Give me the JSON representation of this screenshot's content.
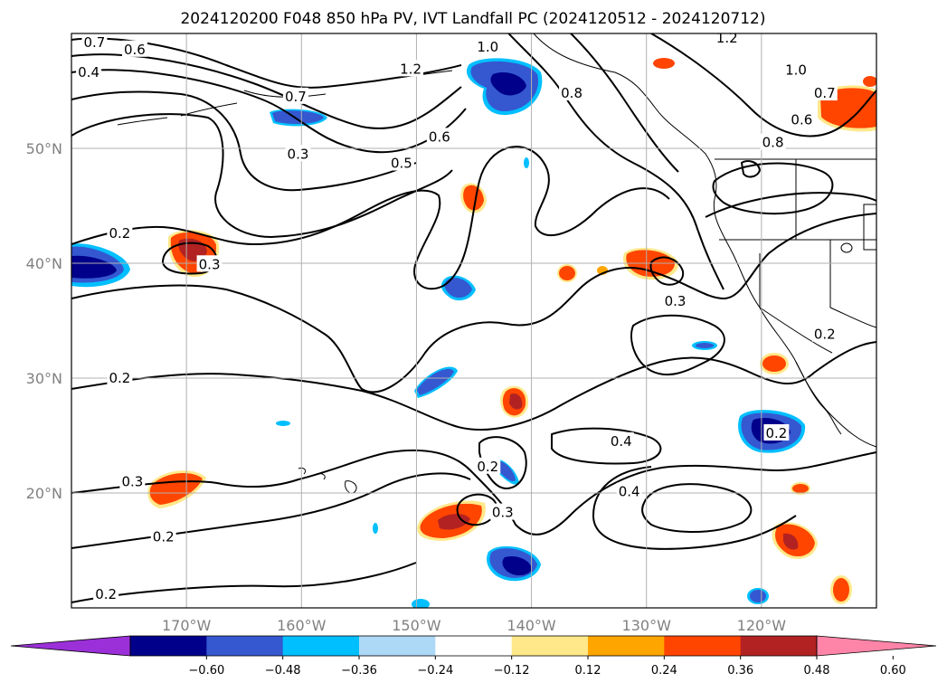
{
  "title": "2024120200 F048 850 hPa PV, IVT Landfall PC (2024120512 - 2024120712)",
  "map": {
    "lon_range": [
      -180,
      -110
    ],
    "lat_range": [
      10,
      60
    ],
    "lat_ticks": [
      {
        "value": 20,
        "label": "20°N"
      },
      {
        "value": 30,
        "label": "30°N"
      },
      {
        "value": 40,
        "label": "40°N"
      },
      {
        "value": 50,
        "label": "50°N"
      }
    ],
    "lon_ticks": [
      {
        "value": -170,
        "label": "170°W"
      },
      {
        "value": -160,
        "label": "160°W"
      },
      {
        "value": -150,
        "label": "150°W"
      },
      {
        "value": -140,
        "label": "140°W"
      },
      {
        "value": -130,
        "label": "130°W"
      },
      {
        "value": -120,
        "label": "120°W"
      }
    ],
    "grid": true
  },
  "colorbar": {
    "extend": "both",
    "colors": [
      "#9b30d9",
      "#00008b",
      "#3558d0",
      "#00bfff",
      "#add8f6",
      "#ffffff",
      "#ffe88a",
      "#ffa500",
      "#ff4500",
      "#b22222",
      "#ff85a8"
    ],
    "tick_labels": [
      "−0.60",
      "−0.48",
      "−0.36",
      "−0.24",
      "−0.12",
      "0.12",
      "0.24",
      "0.36",
      "0.48",
      "0.60"
    ]
  },
  "contour_labels": [
    {
      "text": "0.7",
      "lon": -178,
      "lat": 59.2
    },
    {
      "text": "0.6",
      "lon": -174.5,
      "lat": 58.6
    },
    {
      "text": "0.4",
      "lon": -178.5,
      "lat": 56.6
    },
    {
      "text": "0.7",
      "lon": -160.5,
      "lat": 54.5
    },
    {
      "text": "0.3",
      "lon": -160.3,
      "lat": 49.5
    },
    {
      "text": "1.2",
      "lon": -150.5,
      "lat": 56.9
    },
    {
      "text": "1.0",
      "lon": -143.8,
      "lat": 58.8
    },
    {
      "text": "0.8",
      "lon": -136.5,
      "lat": 54.8
    },
    {
      "text": "0.6",
      "lon": -148,
      "lat": 51
    },
    {
      "text": "0.5",
      "lon": -151.3,
      "lat": 48.7
    },
    {
      "text": "1.2",
      "lon": -123,
      "lat": 59.6
    },
    {
      "text": "1.0",
      "lon": -117,
      "lat": 56.8
    },
    {
      "text": "0.7",
      "lon": -114.5,
      "lat": 54.8
    },
    {
      "text": "0.6",
      "lon": -116.5,
      "lat": 52.5
    },
    {
      "text": "0.8",
      "lon": -119,
      "lat": 50.5
    },
    {
      "text": "0.2",
      "lon": -175.8,
      "lat": 42.6
    },
    {
      "text": "0.3",
      "lon": -168,
      "lat": 39.9
    },
    {
      "text": "0.3",
      "lon": -127.5,
      "lat": 36.7
    },
    {
      "text": "0.2",
      "lon": -114.5,
      "lat": 33.8
    },
    {
      "text": "0.2",
      "lon": -175.8,
      "lat": 30
    },
    {
      "text": "0.2",
      "lon": -118.7,
      "lat": 25.2
    },
    {
      "text": "0.4",
      "lon": -132.2,
      "lat": 24.5
    },
    {
      "text": "0.2",
      "lon": -143.8,
      "lat": 22.3
    },
    {
      "text": "0.4",
      "lon": -131.5,
      "lat": 20.1
    },
    {
      "text": "0.3",
      "lon": -174.7,
      "lat": 21
    },
    {
      "text": "0.3",
      "lon": -142.5,
      "lat": 18.3
    },
    {
      "text": "0.2",
      "lon": -172,
      "lat": 16.2
    },
    {
      "text": "0.2",
      "lon": -177,
      "lat": 11.2
    }
  ]
}
